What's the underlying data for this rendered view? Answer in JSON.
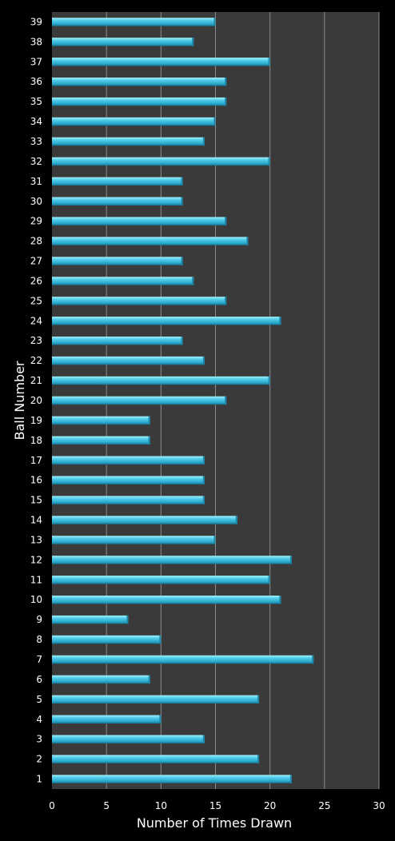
{
  "chart_data": {
    "type": "bar",
    "orientation": "horizontal",
    "title": "",
    "xlabel": "Number of Times Drawn",
    "ylabel": "Ball Number",
    "xlim": [
      0,
      30
    ],
    "xticks": [
      0,
      5,
      10,
      15,
      20,
      25,
      30
    ],
    "grid": "vertical",
    "legend": "none",
    "colors": {
      "background": "#000000",
      "plot_area": "#3a3a3a",
      "gridline": "#8c8c8c",
      "bar_light": "#8fe6f7",
      "bar_mid": "#3fc3e2",
      "bar_dark": "#1c86a8",
      "text": "#ffffff"
    },
    "categories": [
      "1",
      "2",
      "3",
      "4",
      "5",
      "6",
      "7",
      "8",
      "9",
      "10",
      "11",
      "12",
      "13",
      "14",
      "15",
      "16",
      "17",
      "18",
      "19",
      "20",
      "21",
      "22",
      "23",
      "24",
      "25",
      "26",
      "27",
      "28",
      "29",
      "30",
      "31",
      "32",
      "33",
      "34",
      "35",
      "36",
      "37",
      "38",
      "39"
    ],
    "values": [
      22,
      19,
      14,
      10,
      19,
      9,
      24,
      10,
      7,
      21,
      20,
      22,
      15,
      17,
      14,
      14,
      14,
      9,
      9,
      16,
      20,
      14,
      12,
      21,
      16,
      13,
      12,
      18,
      16,
      12,
      12,
      20,
      14,
      15,
      16,
      16,
      20,
      13,
      15
    ]
  }
}
